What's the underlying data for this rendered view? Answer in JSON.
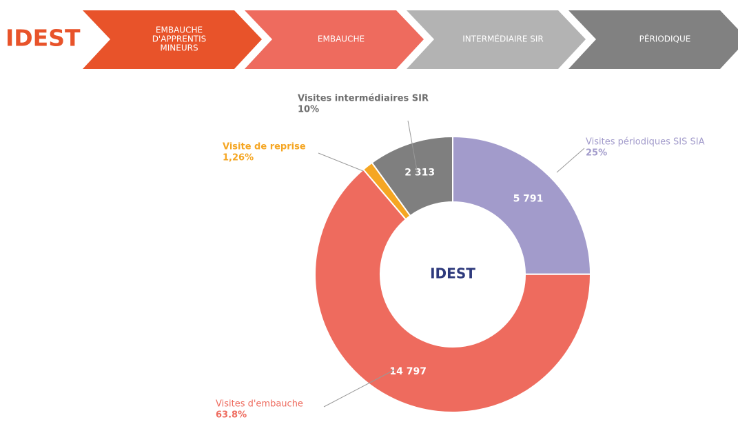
{
  "header": {
    "logo": "IDEST",
    "steps": [
      {
        "lines": [
          "EMBAUCHE",
          "D'APPRENTIS",
          "MINEURS"
        ],
        "color": "#e8532a"
      },
      {
        "lines": [
          "EMBAUCHE"
        ],
        "color": "#ee6b5e"
      },
      {
        "lines": [
          "INTERMÉDIAIRE SIR"
        ],
        "color": "#b3b3b3"
      },
      {
        "lines": [
          "PÉRIODIQUE"
        ],
        "color": "#818181"
      }
    ]
  },
  "chart_data": {
    "type": "donut",
    "center_label": "IDEST",
    "categories": [
      "Visites périodiques SIS SIA",
      "Visites d'embauche",
      "Visite de reprise",
      "Visites intermédiaires SIR"
    ],
    "values": [
      5791,
      14797,
      292,
      2313
    ],
    "value_labels": [
      "5 791",
      "14 797",
      null,
      "2 313"
    ],
    "percent_labels": [
      "25%",
      "63.8%",
      "1,26%",
      "10%"
    ],
    "colors": [
      "#a29bcb",
      "#ee6b5e",
      "#f5a623",
      "#7f7f7f"
    ]
  }
}
